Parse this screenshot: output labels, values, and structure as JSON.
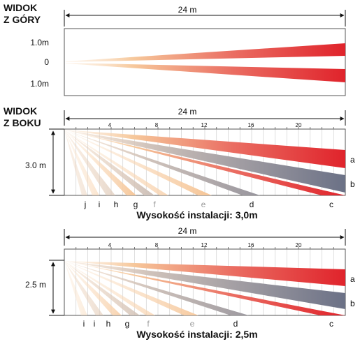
{
  "top_view": {
    "title_line1": "WIDOK",
    "title_line2": "Z GÓRY",
    "range_label": "24 m",
    "y_labels": [
      "1.0m",
      "0",
      "1.0m"
    ]
  },
  "side_view_30": {
    "title_line1": "WIDOK",
    "title_line2": "Z BOKU",
    "range_label": "24 m",
    "height_label": "3.0 m",
    "ticks": [
      "4",
      "8",
      "12",
      "16",
      "20"
    ],
    "zone_letters": [
      "j",
      "i",
      "h",
      "g",
      "f",
      "e",
      "d",
      "c"
    ],
    "side_letters": [
      "a",
      "b"
    ],
    "caption": "Wysokość instalacji: 3,0m"
  },
  "side_view_25": {
    "range_label": "24 m",
    "height_label": "2.5 m",
    "ticks": [
      "4",
      "8",
      "12",
      "16",
      "20"
    ],
    "zone_letters": [
      "i",
      "i",
      "h",
      "g",
      "f",
      "e",
      "d",
      "c"
    ],
    "side_letters": [
      "a",
      "b"
    ],
    "caption": "Wysokość instalacji: 2,5m"
  },
  "colors": {
    "red": "#e0232b",
    "grey": "#6b7186",
    "peach": "#f6c79a",
    "grid": "#c9c9c9"
  }
}
